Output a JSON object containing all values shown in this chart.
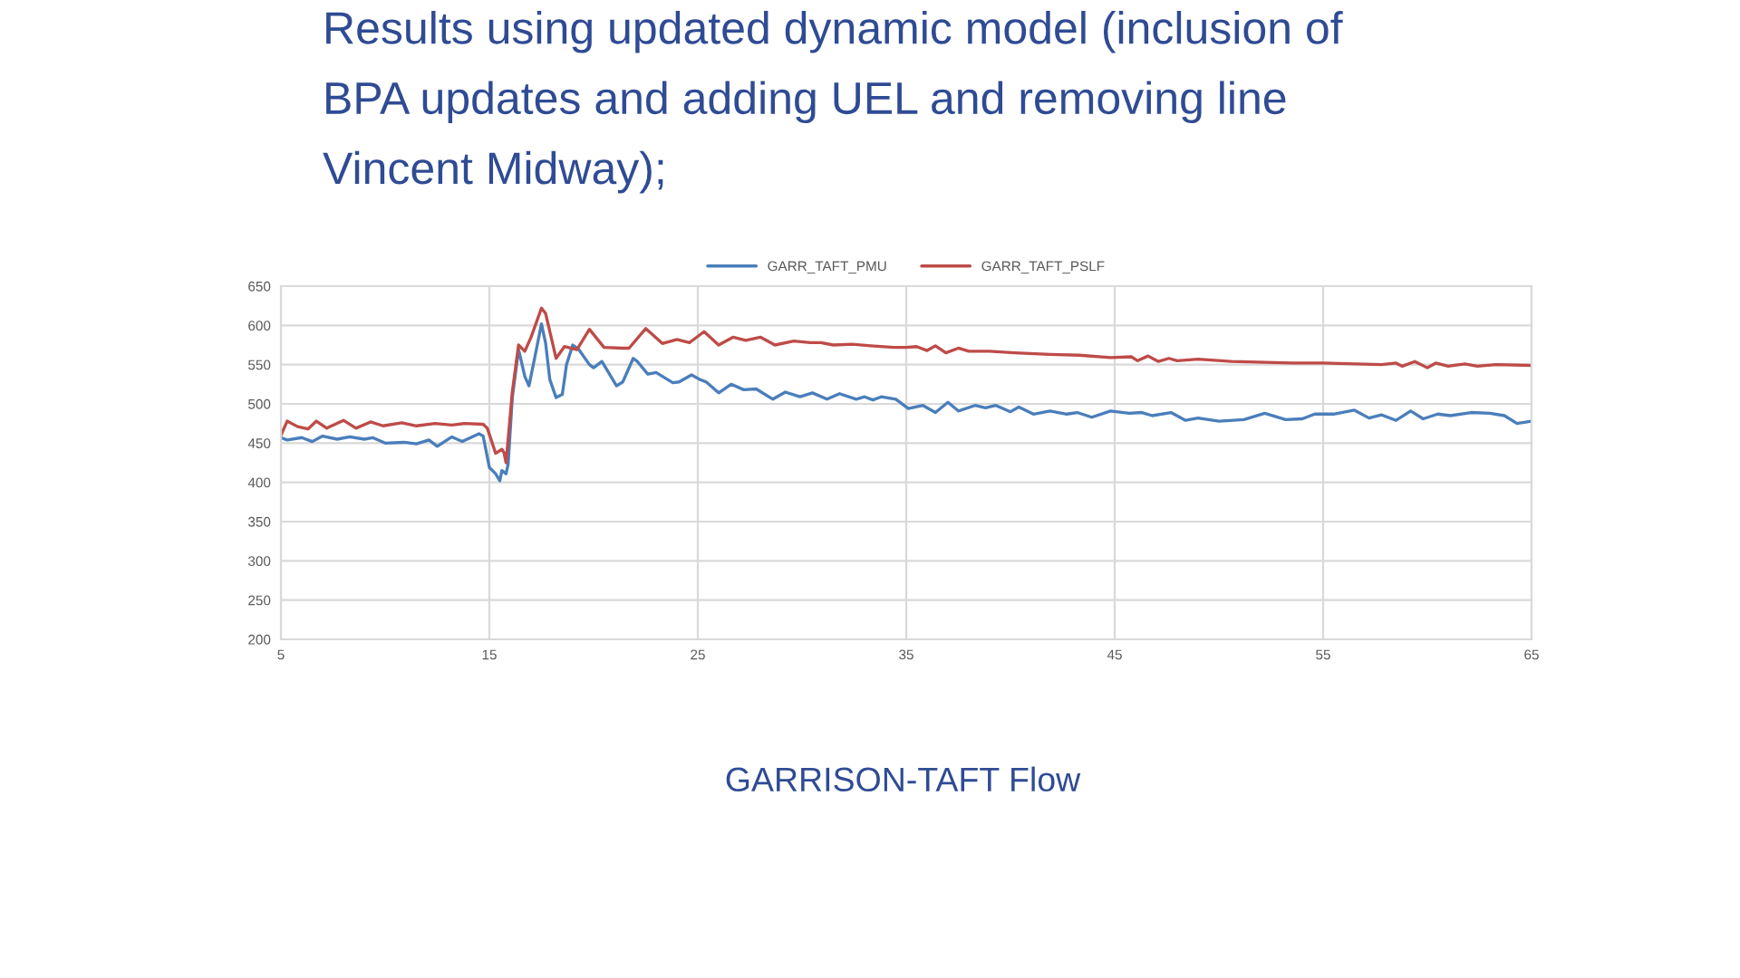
{
  "chart_data": {
    "type": "line",
    "title": "Results using updated dynamic model (inclusion of BPA updates and adding UEL and removing line Vincent Midway);",
    "annotations": [
      "GARRISON-TAFT Flow"
    ],
    "xlim": [
      5,
      65
    ],
    "xticks": [
      5,
      15,
      25,
      35,
      45,
      55,
      65
    ],
    "ylim": [
      200,
      650
    ],
    "yticks": [
      200,
      250,
      300,
      350,
      400,
      450,
      500,
      550,
      600,
      650
    ],
    "grid": true,
    "legend": "top",
    "line_style": "solid",
    "series": [
      {
        "name": "GARR_TAFT_PMU",
        "color": "#4a7ebb",
        "x": [
          5,
          5.3,
          6,
          6.5,
          7,
          7.7,
          8.3,
          9,
          9.4,
          10,
          10.9,
          11.5,
          12.1,
          12.5,
          13.2,
          13.7,
          14.5,
          14.7,
          15,
          15.3,
          15.5,
          15.6,
          15.8,
          15.9,
          16.1,
          16.4,
          16.5,
          16.7,
          16.9,
          17.2,
          17.5,
          17.7,
          17.9,
          18.2,
          18.5,
          18.7,
          19,
          19.3,
          19.8,
          20,
          20.4,
          21.1,
          21.4,
          21.9,
          22.1,
          22.6,
          23,
          23.8,
          24.1,
          24.7,
          25.1,
          25.4,
          26,
          26.6,
          27.2,
          27.8,
          28.6,
          29.2,
          29.9,
          30.5,
          31.2,
          31.8,
          32.6,
          33,
          33.4,
          33.8,
          34.5,
          35.1,
          35.8,
          36.4,
          37,
          37.5,
          38.3,
          38.8,
          39.3,
          40,
          40.4,
          41.1,
          41.9,
          42.7,
          43.2,
          43.9,
          44.8,
          45.7,
          46.3,
          46.8,
          47.7,
          48.4,
          49,
          50,
          51.2,
          52.2,
          53.2,
          54,
          54.6,
          55.5,
          56.5,
          57.2,
          57.8,
          58.5,
          59.2,
          59.8,
          60.5,
          61.1,
          62.1,
          63,
          63.7,
          64.3,
          65
        ],
        "values": [
          457,
          454,
          457,
          452,
          459,
          455,
          458,
          455,
          457,
          450,
          451,
          449,
          454,
          446,
          458,
          452,
          462,
          459,
          419,
          411,
          402,
          415,
          411,
          423,
          508,
          569,
          558,
          535,
          523,
          562,
          602,
          577,
          531,
          508,
          512,
          550,
          575,
          569,
          550,
          546,
          554,
          523,
          528,
          558,
          554,
          538,
          540,
          527,
          528,
          537,
          531,
          528,
          514,
          525,
          518,
          519,
          506,
          515,
          509,
          514,
          506,
          513,
          506,
          509,
          505,
          509,
          506,
          494,
          498,
          489,
          502,
          491,
          498,
          495,
          498,
          490,
          496,
          487,
          491,
          487,
          489,
          483,
          491,
          488,
          489,
          485,
          489,
          479,
          482,
          478,
          480,
          488,
          480,
          481,
          487,
          487,
          492,
          482,
          486,
          479,
          491,
          481,
          487,
          485,
          489,
          488,
          485,
          475,
          478
        ]
      },
      {
        "name": "GARR_TAFT_PSLF",
        "color": "#be4b48",
        "x": [
          5,
          5.3,
          5.8,
          6.3,
          6.7,
          7.2,
          8,
          8.6,
          9.3,
          9.9,
          10.8,
          11.5,
          12.4,
          13.2,
          13.8,
          14.7,
          14.9,
          15.3,
          15.6,
          15.7,
          15.8,
          16.1,
          16.4,
          16.7,
          17,
          17.5,
          17.7,
          18.2,
          18.6,
          19.2,
          19.8,
          20.5,
          21.4,
          21.7,
          22.5,
          23.3,
          24,
          24.6,
          25.3,
          26,
          26.7,
          27.3,
          28,
          28.7,
          29.6,
          30.4,
          30.9,
          31.5,
          32.4,
          33.3,
          34.4,
          35,
          35.5,
          36,
          36.4,
          36.9,
          37.5,
          38,
          39,
          40.2,
          41.9,
          43.3,
          44.8,
          45.8,
          46.1,
          46.6,
          47.1,
          47.6,
          48,
          49,
          50.6,
          53.5,
          55,
          57.8,
          58.5,
          58.8,
          59.4,
          60,
          60.4,
          61,
          61.8,
          62.4,
          63.3,
          65
        ],
        "values": [
          460,
          478,
          471,
          468,
          478,
          469,
          479,
          469,
          477,
          472,
          476,
          472,
          475,
          473,
          475,
          474,
          469,
          437,
          442,
          438,
          425,
          515,
          575,
          567,
          585,
          622,
          615,
          558,
          573,
          569,
          595,
          572,
          571,
          571,
          596,
          577,
          582,
          578,
          592,
          575,
          585,
          581,
          585,
          575,
          580,
          578,
          578,
          575,
          576,
          574,
          572,
          572,
          573,
          568,
          574,
          565,
          571,
          567,
          567,
          565,
          563,
          562,
          559,
          560,
          555,
          561,
          554,
          558,
          555,
          557,
          554,
          552,
          552,
          550,
          552,
          548,
          554,
          546,
          552,
          548,
          551,
          548,
          550,
          549
        ]
      }
    ]
  }
}
